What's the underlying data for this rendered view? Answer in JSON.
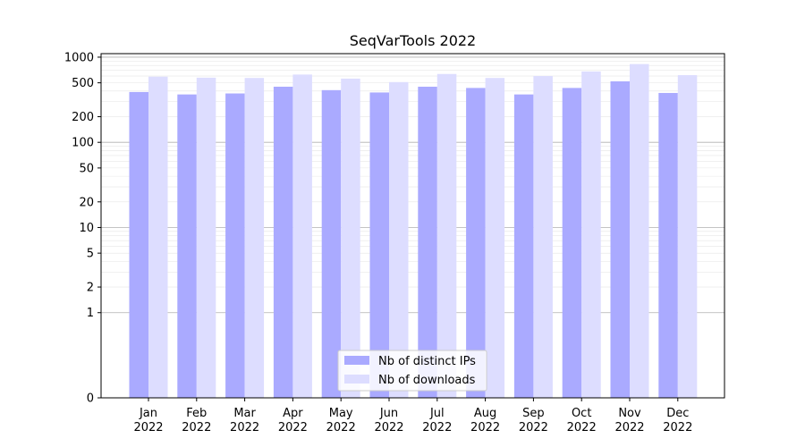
{
  "chart_data": {
    "type": "bar",
    "title": "SeqVarTools 2022",
    "xlabel": "",
    "ylabel": "",
    "y_scale": "symlog",
    "ylim": [
      0,
      1100
    ],
    "y_ticks": [
      {
        "value": 0,
        "label": "0"
      },
      {
        "value": 1,
        "label": "1"
      },
      {
        "value": 2,
        "label": "2"
      },
      {
        "value": 5,
        "label": "5"
      },
      {
        "value": 10,
        "label": "10"
      },
      {
        "value": 20,
        "label": "20"
      },
      {
        "value": 50,
        "label": "50"
      },
      {
        "value": 100,
        "label": "100"
      },
      {
        "value": 200,
        "label": "200"
      },
      {
        "value": 500,
        "label": "500"
      },
      {
        "value": 1000,
        "label": "1000"
      }
    ],
    "categories": [
      {
        "month": "Jan",
        "year": "2022"
      },
      {
        "month": "Feb",
        "year": "2022"
      },
      {
        "month": "Mar",
        "year": "2022"
      },
      {
        "month": "Apr",
        "year": "2022"
      },
      {
        "month": "May",
        "year": "2022"
      },
      {
        "month": "Jun",
        "year": "2022"
      },
      {
        "month": "Jul",
        "year": "2022"
      },
      {
        "month": "Aug",
        "year": "2022"
      },
      {
        "month": "Sep",
        "year": "2022"
      },
      {
        "month": "Oct",
        "year": "2022"
      },
      {
        "month": "Nov",
        "year": "2022"
      },
      {
        "month": "Dec",
        "year": "2022"
      }
    ],
    "series": [
      {
        "name": "Nb of distinct IPs",
        "color": "#aaaaff",
        "values": [
          390,
          365,
          375,
          450,
          410,
          385,
          450,
          435,
          365,
          435,
          520,
          380
        ]
      },
      {
        "name": "Nb of downloads",
        "color": "#ddddff",
        "values": [
          590,
          575,
          570,
          625,
          560,
          510,
          635,
          570,
          600,
          680,
          830,
          615
        ]
      }
    ],
    "legend_position": "bottom-center",
    "grid": true
  }
}
